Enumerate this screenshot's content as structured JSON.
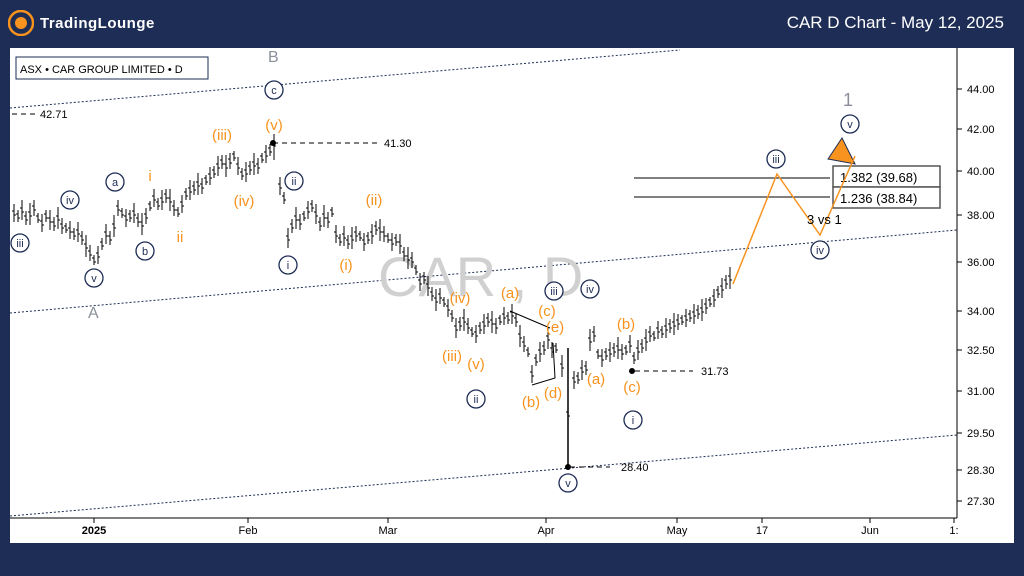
{
  "header": {
    "logo_text": "TradingLounge",
    "title": "CAR D Chart - May 12, 2025"
  },
  "chart_data": {
    "type": "candlestick",
    "symbol_label": "ASX • CAR GROUP LIMITED • D",
    "watermark": "CAR , D",
    "y_ticks": [
      "44.00",
      "42.00",
      "40.00",
      "38.00",
      "36.00",
      "34.00",
      "32.50",
      "31.00",
      "29.50",
      "28.30",
      "27.30"
    ],
    "x_ticks": [
      "2025",
      "Feb",
      "Mar",
      "Apr",
      "May",
      "17",
      "Jun",
      "1:"
    ],
    "price_levels": [
      {
        "label": "42.71"
      },
      {
        "label": "41.30"
      },
      {
        "label": "31.73"
      },
      {
        "label": "28.40"
      }
    ],
    "fib_levels": [
      {
        "label": "1.382 (39.68)",
        "value": 39.68
      },
      {
        "label": "1.236 (38.84)",
        "value": 38.84
      }
    ],
    "annotation": "3 vs 1",
    "wave_labels_gray": [
      "B",
      "A",
      "1"
    ],
    "wave_labels_navy_circled": [
      "c",
      "iii",
      "iv",
      "v",
      "a",
      "b",
      "ii",
      "i",
      "iii",
      "iv",
      "i",
      "ii",
      "v",
      "iii",
      "iv",
      "v"
    ],
    "wave_labels_orange": [
      "(iii)",
      "(v)",
      "i",
      "ii",
      "(iv)",
      "(ii)",
      "(i)",
      "(iv)",
      "(iii)",
      "(v)",
      "(a)",
      "(b)",
      "(c)",
      "(e)",
      "(d)",
      "(a)",
      "(b)",
      "(c)"
    ],
    "colors": {
      "background": "#1e2d55",
      "orange": "#f7931e",
      "navy": "#1e2d55",
      "gray": "#8a8f9a"
    }
  }
}
